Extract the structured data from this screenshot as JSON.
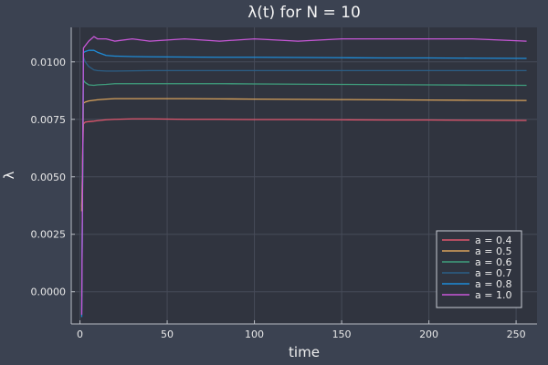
{
  "chart_data": {
    "type": "line",
    "title": "λ(t) for N = 10",
    "xlabel": "time",
    "ylabel": "λ",
    "xlim": [
      -5,
      262
    ],
    "ylim": [
      -0.0014,
      0.0115
    ],
    "xticks": [
      0,
      50,
      100,
      150,
      200,
      250
    ],
    "xtick_labels": [
      "0",
      "50",
      "100",
      "150",
      "200",
      "250"
    ],
    "yticks": [
      0.0,
      0.0025,
      0.005,
      0.0075,
      0.01
    ],
    "ytick_labels": [
      "0.0000",
      "0.0025",
      "0.0050",
      "0.0075",
      "0.0100"
    ],
    "grid": true,
    "legend_position": "bottom-right",
    "x": [
      1,
      2,
      3,
      5,
      8,
      10,
      15,
      20,
      30,
      40,
      60,
      80,
      100,
      125,
      150,
      175,
      200,
      225,
      256
    ],
    "series": [
      {
        "name": "a = 0.4",
        "color": "#e0566d",
        "values": [
          0.0037,
          0.0073,
          0.00738,
          0.0074,
          0.00742,
          0.00744,
          0.00748,
          0.0075,
          0.00752,
          0.00752,
          0.0075,
          0.0075,
          0.00749,
          0.00749,
          0.00748,
          0.00747,
          0.00747,
          0.00746,
          0.00745
        ]
      },
      {
        "name": "a = 0.5",
        "color": "#d8a25b",
        "values": [
          0.0035,
          0.0082,
          0.00825,
          0.0083,
          0.00833,
          0.00835,
          0.00838,
          0.0084,
          0.0084,
          0.0084,
          0.0084,
          0.00839,
          0.00838,
          0.00837,
          0.00836,
          0.00835,
          0.00834,
          0.00833,
          0.00832
        ]
      },
      {
        "name": "a = 0.6",
        "color": "#3f9e7d",
        "values": [
          -0.0002,
          0.0092,
          0.0091,
          0.009,
          0.00898,
          0.009,
          0.00902,
          0.00905,
          0.00905,
          0.00905,
          0.00905,
          0.00905,
          0.00904,
          0.00903,
          0.00902,
          0.00901,
          0.009,
          0.00899,
          0.00898
        ]
      },
      {
        "name": "a = 0.7",
        "color": "#2b5f87",
        "values": [
          -0.0008,
          0.0102,
          0.01,
          0.0098,
          0.00965,
          0.00962,
          0.0096,
          0.0096,
          0.00961,
          0.00962,
          0.00962,
          0.00962,
          0.00962,
          0.00962,
          0.00962,
          0.00962,
          0.00962,
          0.00962,
          0.00962
        ]
      },
      {
        "name": "a = 0.8",
        "color": "#1e8cd8",
        "values": [
          -0.0011,
          0.0104,
          0.01045,
          0.0105,
          0.0105,
          0.01042,
          0.01028,
          0.01025,
          0.01023,
          0.01022,
          0.01021,
          0.0102,
          0.0102,
          0.01019,
          0.01018,
          0.01017,
          0.01017,
          0.01016,
          0.01015
        ]
      },
      {
        "name": "a = 1.0",
        "color": "#c857d8",
        "values": [
          -0.001,
          0.0106,
          0.0107,
          0.0109,
          0.0111,
          0.011,
          0.011,
          0.0109,
          0.011,
          0.0109,
          0.011,
          0.0109,
          0.011,
          0.0109,
          0.011,
          0.011,
          0.011,
          0.011,
          0.0109
        ]
      }
    ]
  }
}
